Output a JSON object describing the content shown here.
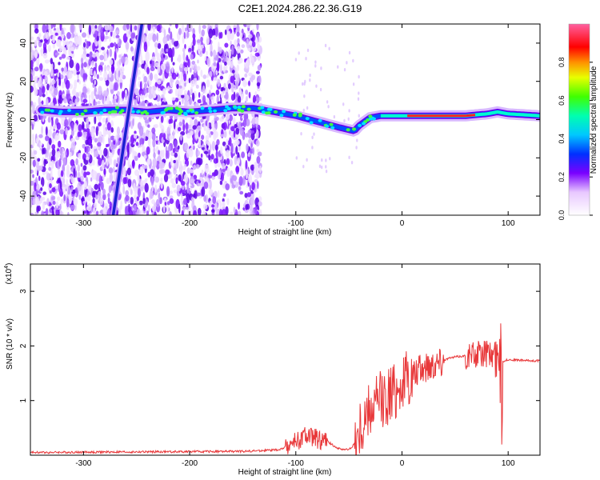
{
  "title": "C2E1.2024.286.22.36.G19",
  "chart_data": [
    {
      "type": "heatmap",
      "xlabel": "Height of straight line (km)",
      "ylabel": "Frequency (Hz)",
      "xlim": [
        -350,
        130
      ],
      "ylim": [
        -50,
        50
      ],
      "x_ticks": [
        -300,
        -200,
        -100,
        0,
        100
      ],
      "y_ticks": [
        -40,
        -20,
        0,
        20,
        40
      ],
      "colorbar": {
        "label": "Normalized spectral amplitude",
        "range": [
          0,
          1
        ],
        "ticks": [
          "0.0",
          "0.2",
          "0.4",
          "0.6",
          "0.8"
        ],
        "tick_values": [
          0.0,
          0.2,
          0.4,
          0.6,
          0.8
        ]
      },
      "ridge": {
        "x": [
          -340,
          -320,
          -300,
          -280,
          -260,
          -240,
          -220,
          -200,
          -180,
          -160,
          -140,
          -120,
          -100,
          -80,
          -60,
          -45,
          -40,
          -30,
          -20,
          -10,
          0,
          20,
          40,
          60,
          80,
          90,
          100,
          130
        ],
        "freq": [
          5,
          4,
          4,
          5,
          5,
          4,
          5,
          4,
          5,
          6,
          6,
          4,
          2,
          -1,
          -4,
          -6,
          -3,
          1,
          2,
          2,
          2,
          2,
          2,
          2,
          3,
          4,
          3,
          2
        ]
      },
      "slanted_line": {
        "x": [
          -272,
          -245
        ],
        "freq": [
          -50,
          50
        ]
      },
      "noise_region_x": [
        -350,
        -133
      ]
    },
    {
      "type": "line",
      "xlabel": "Height of straight line (km)",
      "ylabel": "SNR (10 * v/v)",
      "y_multiplier": "(x10",
      "y_multiplier_exp": "4",
      "y_multiplier_close": ")",
      "xlim": [
        -350,
        130
      ],
      "ylim": [
        0,
        3.5
      ],
      "x_ticks": [
        -300,
        -200,
        -100,
        0,
        100
      ],
      "y_ticks": [
        1,
        2,
        3
      ],
      "color": "#e8383a",
      "series": [
        {
          "x": [
            -350,
            -250,
            -150,
            -115,
            -100,
            -90,
            -80,
            -70,
            -60,
            -50,
            -45,
            -40,
            -30,
            -20,
            -10,
            0,
            10,
            20,
            30,
            40,
            50,
            60,
            70,
            80,
            85,
            90,
            95,
            100,
            110,
            120,
            130
          ],
          "y": [
            0.05,
            0.06,
            0.07,
            0.1,
            0.25,
            0.35,
            0.3,
            0.25,
            0.12,
            0.1,
            0.2,
            0.4,
            0.8,
            1.0,
            1.15,
            1.3,
            1.45,
            1.6,
            1.7,
            1.75,
            1.8,
            1.82,
            1.84,
            1.85,
            1.85,
            1.75,
            1.72,
            1.75,
            1.74,
            1.73,
            1.73
          ]
        }
      ]
    }
  ]
}
